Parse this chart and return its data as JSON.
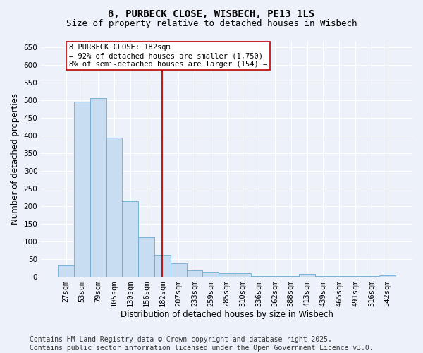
{
  "title": "8, PURBECK CLOSE, WISBECH, PE13 1LS",
  "subtitle": "Size of property relative to detached houses in Wisbech",
  "xlabel": "Distribution of detached houses by size in Wisbech",
  "ylabel": "Number of detached properties",
  "categories": [
    "27sqm",
    "53sqm",
    "79sqm",
    "105sqm",
    "130sqm",
    "156sqm",
    "182sqm",
    "207sqm",
    "233sqm",
    "259sqm",
    "285sqm",
    "310sqm",
    "336sqm",
    "362sqm",
    "388sqm",
    "413sqm",
    "439sqm",
    "465sqm",
    "491sqm",
    "516sqm",
    "542sqm"
  ],
  "values": [
    32,
    497,
    507,
    395,
    213,
    111,
    62,
    38,
    17,
    13,
    9,
    10,
    1,
    1,
    1,
    8,
    2,
    1,
    1,
    1,
    3
  ],
  "bar_color": "#c9ddf2",
  "bar_edge_color": "#6aaad4",
  "vline_x_index": 6,
  "vline_color": "#c00000",
  "annotation_line1": "8 PURBECK CLOSE: 182sqm",
  "annotation_line2": "← 92% of detached houses are smaller (1,750)",
  "annotation_line3": "8% of semi-detached houses are larger (154) →",
  "annotation_box_color": "#ffffff",
  "annotation_box_edge": "#c00000",
  "ylim": [
    0,
    670
  ],
  "yticks": [
    0,
    50,
    100,
    150,
    200,
    250,
    300,
    350,
    400,
    450,
    500,
    550,
    600,
    650
  ],
  "footer_line1": "Contains HM Land Registry data © Crown copyright and database right 2025.",
  "footer_line2": "Contains public sector information licensed under the Open Government Licence v3.0.",
  "background_color": "#edf2fa",
  "grid_color": "#ffffff",
  "title_fontsize": 10,
  "subtitle_fontsize": 9,
  "axis_label_fontsize": 8.5,
  "tick_fontsize": 7.5,
  "annotation_fontsize": 7.5,
  "footer_fontsize": 7
}
